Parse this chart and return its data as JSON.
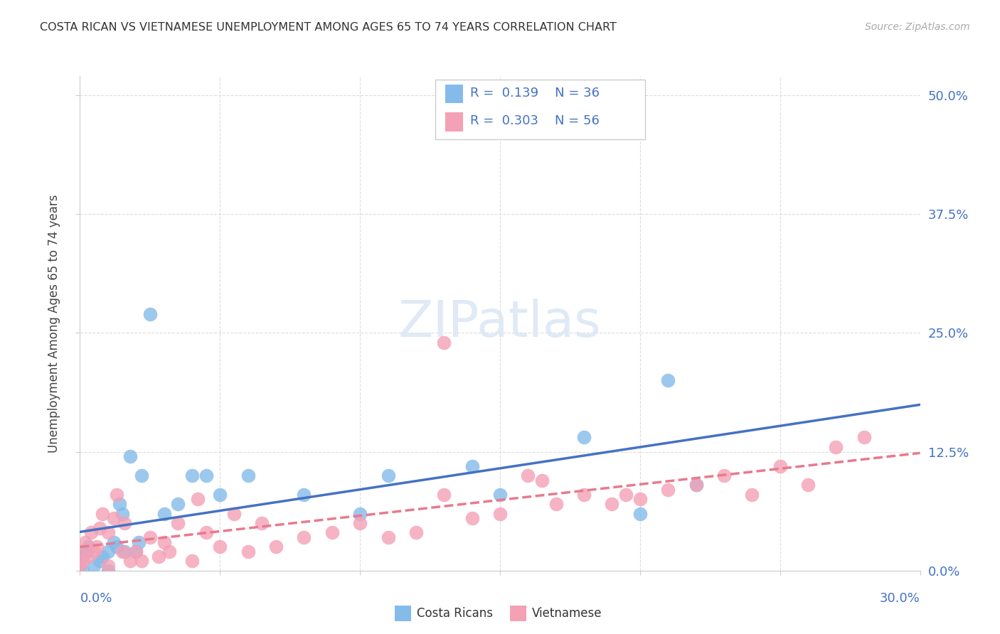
{
  "title": "COSTA RICAN VS VIETNAMESE UNEMPLOYMENT AMONG AGES 65 TO 74 YEARS CORRELATION CHART",
  "source": "Source: ZipAtlas.com",
  "ylabel": "Unemployment Among Ages 65 to 74 years",
  "ytick_vals": [
    0.0,
    0.125,
    0.25,
    0.375,
    0.5
  ],
  "ytick_labels": [
    "0.0%",
    "12.5%",
    "25.0%",
    "37.5%",
    "50.0%"
  ],
  "xtick_vals": [
    0.0,
    0.05,
    0.1,
    0.15,
    0.2,
    0.25,
    0.3
  ],
  "xlim": [
    0.0,
    0.3
  ],
  "ylim": [
    0.0,
    0.52
  ],
  "legend_blue_r": "0.139",
  "legend_blue_n": "36",
  "legend_pink_r": "0.303",
  "legend_pink_n": "56",
  "color_blue": "#85BBEA",
  "color_pink": "#F4A0B5",
  "color_blue_line": "#4472C4",
  "color_pink_line": "#E87A8E",
  "color_text_blue": "#4472C4",
  "watermark_color": "#DCE8F5",
  "costa_rican_x": [
    0.0,
    0.0,
    0.001,
    0.001,
    0.002,
    0.003,
    0.005,
    0.007,
    0.008,
    0.01,
    0.01,
    0.012,
    0.013,
    0.014,
    0.015,
    0.016,
    0.018,
    0.02,
    0.021,
    0.022,
    0.025,
    0.03,
    0.035,
    0.04,
    0.045,
    0.05,
    0.06,
    0.08,
    0.1,
    0.11,
    0.14,
    0.15,
    0.18,
    0.2,
    0.21,
    0.22
  ],
  "costa_rican_y": [
    0.005,
    0.01,
    0.0,
    0.015,
    0.02,
    0.025,
    0.005,
    0.01,
    0.015,
    0.0,
    0.02,
    0.03,
    0.025,
    0.07,
    0.06,
    0.02,
    0.12,
    0.02,
    0.03,
    0.1,
    0.27,
    0.06,
    0.07,
    0.1,
    0.1,
    0.08,
    0.1,
    0.08,
    0.06,
    0.1,
    0.11,
    0.08,
    0.14,
    0.06,
    0.2,
    0.09
  ],
  "vietnamese_x": [
    0.0,
    0.0,
    0.001,
    0.002,
    0.003,
    0.004,
    0.005,
    0.006,
    0.007,
    0.008,
    0.01,
    0.01,
    0.012,
    0.013,
    0.015,
    0.016,
    0.018,
    0.02,
    0.022,
    0.025,
    0.028,
    0.03,
    0.032,
    0.035,
    0.04,
    0.042,
    0.045,
    0.05,
    0.055,
    0.06,
    0.065,
    0.07,
    0.08,
    0.09,
    0.1,
    0.11,
    0.12,
    0.13,
    0.14,
    0.15,
    0.16,
    0.17,
    0.18,
    0.19,
    0.2,
    0.21,
    0.22,
    0.23,
    0.24,
    0.25,
    0.26,
    0.27,
    0.28,
    0.13,
    0.165,
    0.195
  ],
  "vietnamese_y": [
    0.005,
    0.02,
    0.01,
    0.03,
    0.015,
    0.04,
    0.02,
    0.025,
    0.045,
    0.06,
    0.005,
    0.04,
    0.055,
    0.08,
    0.02,
    0.05,
    0.01,
    0.02,
    0.01,
    0.035,
    0.015,
    0.03,
    0.02,
    0.05,
    0.01,
    0.075,
    0.04,
    0.025,
    0.06,
    0.02,
    0.05,
    0.025,
    0.035,
    0.04,
    0.05,
    0.035,
    0.04,
    0.24,
    0.055,
    0.06,
    0.1,
    0.07,
    0.08,
    0.07,
    0.075,
    0.085,
    0.09,
    0.1,
    0.08,
    0.11,
    0.09,
    0.13,
    0.14,
    0.08,
    0.095,
    0.08
  ]
}
